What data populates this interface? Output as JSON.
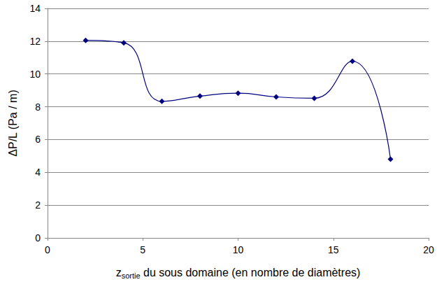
{
  "chart_data": {
    "type": "line",
    "x_label": "zsortie du sous domaine (en nombre de diamètres)",
    "y_label": "ΔP/L (Pa / m)",
    "x": [
      2,
      4,
      6,
      8,
      10,
      12,
      14,
      16,
      18
    ],
    "values": [
      12.05,
      11.9,
      8.33,
      8.65,
      8.83,
      8.6,
      8.52,
      10.78,
      4.8
    ],
    "color": "#000080",
    "marker": "diamond",
    "line_style": "solid",
    "xlim": [
      0,
      20
    ],
    "xticks": [
      0,
      5,
      10,
      15,
      20
    ],
    "ylim": [
      0,
      14
    ],
    "yticks": [
      0,
      2,
      4,
      6,
      8,
      10,
      12,
      14
    ],
    "grid": "y"
  }
}
